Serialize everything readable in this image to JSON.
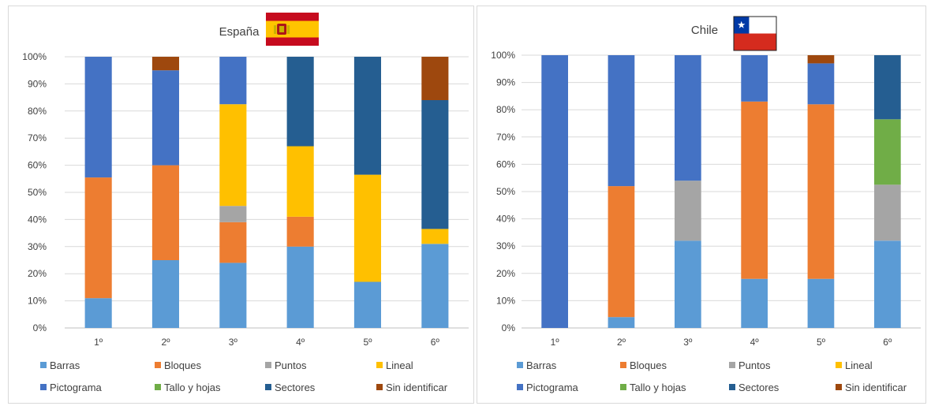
{
  "chart_data": [
    {
      "type": "bar",
      "stacked": true,
      "percent": true,
      "title": "España",
      "flag": "spain-flag",
      "categories": [
        "1º",
        "2º",
        "3º",
        "4º",
        "5º",
        "6º"
      ],
      "ylim": [
        0,
        100
      ],
      "yticks": [
        "0%",
        "10%",
        "20%",
        "30%",
        "40%",
        "50%",
        "60%",
        "70%",
        "80%",
        "90%",
        "100%"
      ],
      "grid": true,
      "legend_position": "bottom",
      "series": [
        {
          "name": "Barras",
          "color": "#5b9bd5",
          "values": [
            11,
            25,
            24,
            30,
            17,
            31
          ]
        },
        {
          "name": "Bloques",
          "color": "#ed7d31",
          "values": [
            44.5,
            35,
            15,
            11,
            0,
            0
          ]
        },
        {
          "name": "Puntos",
          "color": "#a5a5a5",
          "values": [
            0,
            0,
            6,
            0,
            0,
            0
          ]
        },
        {
          "name": "Lineal",
          "color": "#ffc000",
          "values": [
            0,
            0,
            37.5,
            26,
            39.5,
            5.5
          ]
        },
        {
          "name": "Pictograma",
          "color": "#4472c4",
          "values": [
            44.5,
            35,
            17.5,
            0,
            0,
            0
          ]
        },
        {
          "name": "Tallo y hojas",
          "color": "#70ad47",
          "values": [
            0,
            0,
            0,
            0,
            0,
            0
          ]
        },
        {
          "name": "Sectores",
          "color": "#255e91",
          "values": [
            0,
            0,
            0,
            33,
            43.5,
            47.5
          ]
        },
        {
          "name": "Sin identificar",
          "color": "#9e480e",
          "values": [
            0,
            5,
            0,
            0,
            0,
            16
          ]
        }
      ]
    },
    {
      "type": "bar",
      "stacked": true,
      "percent": true,
      "title": "Chile",
      "flag": "chile-flag",
      "categories": [
        "1º",
        "2º",
        "3º",
        "4º",
        "5º",
        "6º"
      ],
      "ylim": [
        0,
        100
      ],
      "yticks": [
        "0%",
        "10%",
        "20%",
        "30%",
        "40%",
        "50%",
        "60%",
        "70%",
        "80%",
        "90%",
        "100%"
      ],
      "grid": true,
      "legend_position": "bottom",
      "series": [
        {
          "name": "Barras",
          "color": "#5b9bd5",
          "values": [
            0,
            4,
            32,
            18,
            18,
            32
          ]
        },
        {
          "name": "Bloques",
          "color": "#ed7d31",
          "values": [
            0,
            48,
            0,
            65,
            64,
            0
          ]
        },
        {
          "name": "Puntos",
          "color": "#a5a5a5",
          "values": [
            0,
            0,
            22,
            0,
            0,
            20.5
          ]
        },
        {
          "name": "Lineal",
          "color": "#ffc000",
          "values": [
            0,
            0,
            0,
            0,
            0,
            0
          ]
        },
        {
          "name": "Pictograma",
          "color": "#4472c4",
          "values": [
            100,
            48,
            46,
            17,
            15,
            0
          ]
        },
        {
          "name": "Tallo y hojas",
          "color": "#70ad47",
          "values": [
            0,
            0,
            0,
            0,
            0,
            24
          ]
        },
        {
          "name": "Sectores",
          "color": "#255e91",
          "values": [
            0,
            0,
            0,
            0,
            0,
            23.5
          ]
        },
        {
          "name": "Sin identificar",
          "color": "#9e480e",
          "values": [
            0,
            0,
            0,
            0,
            3,
            0
          ]
        }
      ]
    }
  ]
}
